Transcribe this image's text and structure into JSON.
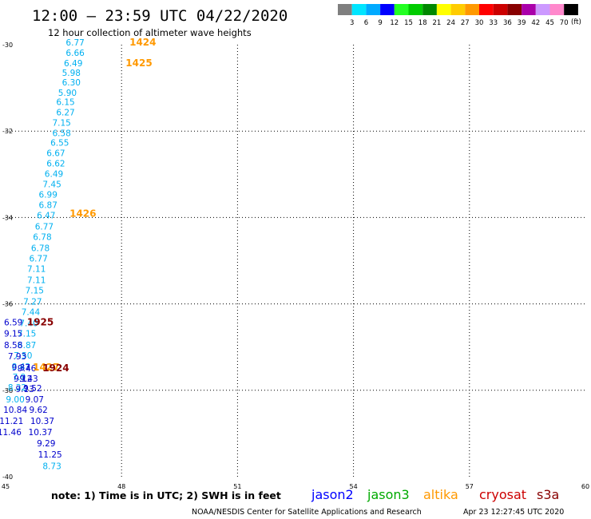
{
  "title": "12:00 – 23:59 UTC 04/22/2020",
  "subtitle": "12 hour collection of altimeter wave heights",
  "color_scale": {
    "labels": [
      "3",
      "6",
      "9",
      "12",
      "15",
      "18",
      "21",
      "24",
      "27",
      "30",
      "33",
      "36",
      "39",
      "42",
      "45",
      "70"
    ],
    "unit": "(ft)",
    "colors": [
      "#7f7f7f",
      "#00e5ff",
      "#00aaff",
      "#0000ff",
      "#22ff22",
      "#00cc00",
      "#008800",
      "#ffff00",
      "#ffcc00",
      "#ff9900",
      "#ff0000",
      "#cc0000",
      "#880000",
      "#aa00aa",
      "#cc99ff",
      "#ff88cc",
      "#000000"
    ]
  },
  "note": "note:  1) Time is in UTC;  2) SWH is in feet",
  "credit": "NOAA/NESDIS Center for Satellite Applications and Research",
  "timestamp": "Apr 23 12:27:45 UTC 2020",
  "legend": [
    {
      "name": "jason2",
      "color": "#0000ff"
    },
    {
      "name": "jason3",
      "color": "#00aa00"
    },
    {
      "name": "altika",
      "color": "#ff9900"
    },
    {
      "name": "cryosat",
      "color": "#cc0000"
    },
    {
      "name": "s3a",
      "color": "#880000"
    }
  ],
  "chart_data": {
    "type": "scatter",
    "xlim": [
      45,
      60
    ],
    "ylim": [
      -40,
      -30
    ],
    "x_ticks": [
      "45",
      "48",
      "51",
      "54",
      "57",
      "60"
    ],
    "y_ticks": [
      "-30",
      "-32",
      "-34",
      "-36",
      "-38",
      "-40"
    ],
    "grid": true,
    "series": [
      {
        "name": "altika",
        "color": "#00b0f0",
        "points": [
          {
            "x": 46.8,
            "y": -30.02,
            "label": "6.77"
          },
          {
            "x": 46.8,
            "y": -30.26,
            "label": "6.66"
          },
          {
            "x": 46.75,
            "y": -30.5,
            "label": "6.49"
          },
          {
            "x": 46.7,
            "y": -30.72,
            "label": "5.98"
          },
          {
            "x": 46.7,
            "y": -30.94,
            "label": "6.30"
          },
          {
            "x": 46.6,
            "y": -31.18,
            "label": "5.90"
          },
          {
            "x": 46.55,
            "y": -31.4,
            "label": "6.15"
          },
          {
            "x": 46.55,
            "y": -31.64,
            "label": "6.27"
          },
          {
            "x": 46.45,
            "y": -31.88,
            "label": "7.15"
          },
          {
            "x": 46.45,
            "y": -32.12,
            "label": "6.58"
          },
          {
            "x": 46.4,
            "y": -32.34,
            "label": "6.55"
          },
          {
            "x": 46.3,
            "y": -32.58,
            "label": "6.67"
          },
          {
            "x": 46.3,
            "y": -32.82,
            "label": "6.62"
          },
          {
            "x": 46.25,
            "y": -33.06,
            "label": "6.49"
          },
          {
            "x": 46.2,
            "y": -33.3,
            "label": "7.45"
          },
          {
            "x": 46.1,
            "y": -33.54,
            "label": "6.99"
          },
          {
            "x": 46.1,
            "y": -33.78,
            "label": "6.87"
          },
          {
            "x": 46.05,
            "y": -34.02,
            "label": "6.47"
          },
          {
            "x": 46.0,
            "y": -34.28,
            "label": "6.77"
          },
          {
            "x": 45.95,
            "y": -34.52,
            "label": "6.78"
          },
          {
            "x": 45.9,
            "y": -34.78,
            "label": "6.78"
          },
          {
            "x": 45.85,
            "y": -35.02,
            "label": "6.77"
          },
          {
            "x": 45.8,
            "y": -35.26,
            "label": "7.11"
          },
          {
            "x": 45.8,
            "y": -35.52,
            "label": "7.11"
          },
          {
            "x": 45.75,
            "y": -35.76,
            "label": "7.15"
          },
          {
            "x": 45.7,
            "y": -36.02,
            "label": "7.27"
          },
          {
            "x": 45.65,
            "y": -36.26,
            "label": "7.44"
          },
          {
            "x": 45.6,
            "y": -36.52,
            "label": "7.40"
          },
          {
            "x": 45.55,
            "y": -36.76,
            "label": "7.15"
          },
          {
            "x": 45.55,
            "y": -37.02,
            "label": "6.87"
          },
          {
            "x": 45.45,
            "y": -37.26,
            "label": "7.50"
          },
          {
            "x": 45.4,
            "y": -37.52,
            "label": "8.43"
          },
          {
            "x": 45.35,
            "y": -37.76,
            "label": "7.9"
          },
          {
            "x": 45.3,
            "y": -38.0,
            "label": "8.22"
          },
          {
            "x": 45.25,
            "y": -38.28,
            "label": "9.00"
          }
        ]
      },
      {
        "name": "jason3",
        "color": "#0000cc",
        "points": [
          {
            "x": 45.2,
            "y": -36.5,
            "label": "6.59"
          },
          {
            "x": 45.2,
            "y": -36.76,
            "label": "9.15"
          },
          {
            "x": 45.2,
            "y": -37.02,
            "label": "8.58"
          },
          {
            "x": 45.3,
            "y": -37.28,
            "label": "7.93"
          },
          {
            "x": 45.4,
            "y": -37.54,
            "label": "9.37"
          },
          {
            "x": 45.45,
            "y": -37.8,
            "label": "9.12"
          },
          {
            "x": 45.5,
            "y": -38.04,
            "label": "9.13"
          },
          {
            "x": 45.55,
            "y": -37.56,
            "label": "9.46"
          },
          {
            "x": 45.6,
            "y": -37.8,
            "label": "9.43"
          },
          {
            "x": 45.7,
            "y": -38.02,
            "label": "9.52"
          },
          {
            "x": 45.75,
            "y": -38.28,
            "label": "9.07"
          },
          {
            "x": 45.85,
            "y": -38.52,
            "label": "9.62"
          },
          {
            "x": 45.25,
            "y": -38.52,
            "label": "10.84"
          },
          {
            "x": 45.15,
            "y": -38.78,
            "label": "11.21"
          },
          {
            "x": 45.1,
            "y": -39.04,
            "label": "11.46"
          },
          {
            "x": 45.95,
            "y": -38.78,
            "label": "10.37"
          },
          {
            "x": 45.9,
            "y": -39.04,
            "label": "10.37"
          },
          {
            "x": 46.05,
            "y": -39.3,
            "label": "9.29"
          },
          {
            "x": 46.15,
            "y": -39.56,
            "label": "11.25"
          }
        ]
      },
      {
        "name": "altika_tail",
        "color": "#00b0f0",
        "points": [
          {
            "x": 46.2,
            "y": -39.82,
            "label": "8.73"
          }
        ]
      }
    ],
    "time_labels": [
      {
        "x": 48.55,
        "y": -30.02,
        "label": "1424",
        "color": "#ff9900"
      },
      {
        "x": 48.45,
        "y": -30.5,
        "label": "1425",
        "color": "#ff9900"
      },
      {
        "x": 47.0,
        "y": -33.98,
        "label": "1426",
        "color": "#ff9900"
      },
      {
        "x": 46.05,
        "y": -37.54,
        "label": "1427",
        "color": "#ff9900"
      },
      {
        "x": 45.9,
        "y": -36.5,
        "label": "1925",
        "color": "#880000"
      },
      {
        "x": 46.3,
        "y": -37.56,
        "label": "1924",
        "color": "#880000"
      }
    ]
  }
}
